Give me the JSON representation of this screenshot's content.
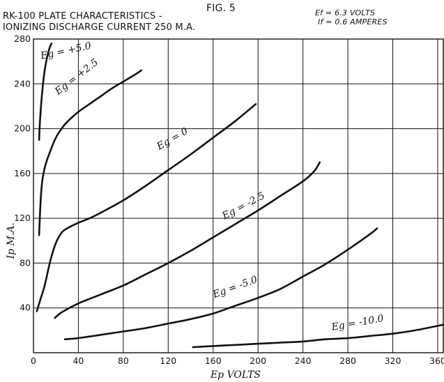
{
  "header": {
    "title_line1": "RK-100 PLATE CHARACTERISTICS -",
    "title_line2": "IONIZING DISCHARGE CURRENT  250 M.A.",
    "figure": "FIG. 5",
    "filament_voltage": "Ef = 6.3 VOLTS",
    "filament_current": "If = 0.6 AMPERES"
  },
  "chart_data": {
    "type": "line",
    "xlabel": "Ep VOLTS",
    "ylabel": "Ip M.A.",
    "xlim": [
      0,
      365
    ],
    "ylim": [
      0,
      280
    ],
    "xticks": [
      0,
      40,
      80,
      120,
      160,
      200,
      240,
      280,
      320,
      360
    ],
    "yticks": [
      40,
      80,
      120,
      160,
      200,
      240,
      280
    ],
    "grid": true,
    "series": [
      {
        "name": "Eg = +5.0",
        "x": [
          5,
          6,
          8,
          10,
          12,
          14,
          16
        ],
        "y": [
          190,
          210,
          235,
          252,
          263,
          271,
          276
        ]
      },
      {
        "name": "Eg = +2.5",
        "x": [
          5,
          7,
          10,
          15,
          20,
          25,
          30,
          40,
          50,
          60,
          70,
          80,
          90,
          96
        ],
        "y": [
          105,
          145,
          165,
          180,
          192,
          200,
          206,
          215,
          222,
          229,
          236,
          242,
          248,
          252
        ]
      },
      {
        "name": "Eg = 0",
        "x": [
          3,
          6,
          10,
          15,
          20,
          25,
          30,
          40,
          50,
          60,
          80,
          100,
          120,
          140,
          160,
          180,
          198
        ],
        "y": [
          37,
          47,
          60,
          82,
          98,
          107,
          111,
          116,
          120,
          125,
          136,
          149,
          163,
          177,
          192,
          207,
          222
        ]
      },
      {
        "name": "Eg = -2.5",
        "x": [
          19,
          25,
          40,
          60,
          80,
          100,
          120,
          140,
          160,
          180,
          200,
          220,
          240,
          250,
          255
        ],
        "y": [
          31,
          36,
          44,
          52,
          60,
          70,
          80,
          91,
          103,
          115,
          127,
          140,
          153,
          162,
          170
        ]
      },
      {
        "name": "Eg = -5.0",
        "x": [
          28,
          40,
          60,
          80,
          100,
          120,
          140,
          160,
          180,
          200,
          220,
          240,
          260,
          280,
          300,
          306
        ],
        "y": [
          12,
          13,
          16,
          19,
          22,
          26,
          30,
          35,
          42,
          49,
          57,
          68,
          79,
          92,
          106,
          111
        ]
      },
      {
        "name": "Eg = -10.0",
        "x": [
          142,
          160,
          180,
          200,
          220,
          240,
          260,
          280,
          300,
          320,
          340,
          365
        ],
        "y": [
          5,
          6,
          7,
          8,
          9,
          10,
          12,
          13,
          15,
          17,
          20,
          25
        ]
      }
    ],
    "curve_labels": [
      "Eg = +5.0",
      "Eg = +2.5",
      "Eg = 0",
      "Eg = -2.5",
      "Eg = -5.0",
      "Eg = -10.0"
    ]
  }
}
